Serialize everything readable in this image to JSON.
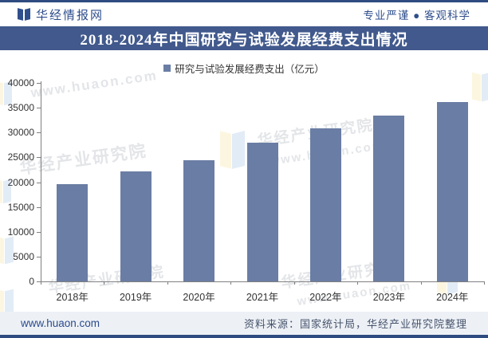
{
  "header": {
    "site_name": "华经情报网",
    "tagline": "专业严谨 ● 客观科学"
  },
  "title": "2018-2024年中国研究与试验发展经费支出情况",
  "legend": {
    "label": "研究与试验发展经费支出（亿元）"
  },
  "chart_data": {
    "type": "bar",
    "title": "2018-2024年中国研究与试验发展经费支出情况",
    "categories": [
      "2018年",
      "2019年",
      "2020年",
      "2021年",
      "2022年",
      "2023年",
      "2024年"
    ],
    "series": [
      {
        "name": "研究与试验发展经费支出（亿元）",
        "values": [
          19678,
          22144,
          24393,
          27956,
          30783,
          33357,
          36130
        ]
      }
    ],
    "xlabel": "",
    "ylabel": "",
    "ylim": [
      0,
      40000
    ],
    "yticks": [
      0,
      5000,
      10000,
      15000,
      20000,
      25000,
      30000,
      35000,
      40000
    ],
    "grid": false,
    "legend_position": "top-center",
    "bar_color": "#6A7DA4"
  },
  "watermarks": {
    "institute": "华经产业研究院",
    "url": "www.huaon.com"
  },
  "footer": {
    "site_url": "www.huaon.com",
    "source": "资料来源：国家统计局，华经产业研究院整理"
  },
  "colors": {
    "accent_dark_blue": "#2E4C80",
    "title_bar_bg": "#41598C",
    "header_text": "#2F4E8C",
    "bar": "#6A7DA4",
    "footer_bg": "#EDF1F6",
    "axis": "#808080",
    "label_text": "#333333"
  }
}
